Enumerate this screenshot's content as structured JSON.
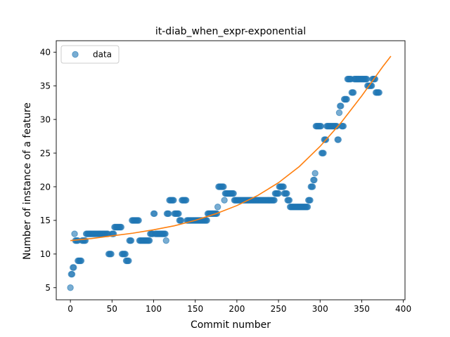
{
  "chart_data": {
    "type": "scatter",
    "title": "it-diab_when_expr-exponential",
    "xlabel": "Commit number",
    "ylabel": "Number of instance of a feature",
    "xlim": [
      -17,
      402
    ],
    "ylim": [
      3.2,
      41.7
    ],
    "xticks": [
      0,
      50,
      100,
      150,
      200,
      250,
      300,
      350,
      400
    ],
    "yticks": [
      5,
      10,
      15,
      20,
      25,
      30,
      35,
      40
    ],
    "grid": false,
    "legend": {
      "position": "top-left",
      "entries": [
        "data"
      ]
    },
    "series": [
      {
        "name": "data",
        "kind": "markers",
        "color": "#1f77b4",
        "segments": [
          [
            0,
            0,
            5
          ],
          [
            1,
            2,
            7
          ],
          [
            3,
            4,
            8
          ],
          [
            5,
            5,
            13
          ],
          [
            6,
            9,
            12
          ],
          [
            9,
            13,
            9
          ],
          [
            14,
            18,
            12
          ],
          [
            19,
            45,
            13
          ],
          [
            46,
            49,
            10
          ],
          [
            50,
            52,
            13
          ],
          [
            53,
            61,
            14
          ],
          [
            62,
            66,
            10
          ],
          [
            67,
            70,
            9
          ],
          [
            71,
            73,
            12
          ],
          [
            74,
            82,
            15
          ],
          [
            83,
            95,
            12
          ],
          [
            96,
            99,
            13
          ],
          [
            100,
            101,
            16
          ],
          [
            102,
            114,
            13
          ],
          [
            115,
            115,
            12
          ],
          [
            116,
            118,
            16
          ],
          [
            119,
            124,
            18
          ],
          [
            125,
            130,
            16
          ],
          [
            131,
            133,
            15
          ],
          [
            134,
            139,
            18
          ],
          [
            140,
            164,
            15
          ],
          [
            165,
            176,
            16
          ],
          [
            177,
            177,
            17
          ],
          [
            178,
            184,
            20
          ],
          [
            185,
            185,
            18
          ],
          [
            186,
            196,
            19
          ],
          [
            197,
            245,
            18
          ],
          [
            246,
            250,
            19
          ],
          [
            251,
            256,
            20
          ],
          [
            257,
            260,
            19
          ],
          [
            261,
            263,
            18
          ],
          [
            264,
            267,
            17
          ],
          [
            268,
            285,
            17
          ],
          [
            286,
            288,
            18
          ],
          [
            289,
            291,
            20
          ],
          [
            292,
            293,
            21
          ],
          [
            294,
            294,
            22
          ],
          [
            295,
            301,
            29
          ],
          [
            302,
            304,
            25
          ],
          [
            305,
            307,
            27
          ],
          [
            308,
            320,
            29
          ],
          [
            321,
            322,
            27
          ],
          [
            323,
            323,
            31
          ],
          [
            324,
            325,
            32
          ],
          [
            326,
            328,
            29
          ],
          [
            329,
            332,
            33
          ],
          [
            333,
            337,
            36
          ],
          [
            338,
            340,
            34
          ],
          [
            341,
            356,
            36
          ],
          [
            357,
            362,
            35
          ],
          [
            363,
            366,
            36
          ],
          [
            367,
            371,
            34
          ]
        ]
      },
      {
        "name": "",
        "kind": "line",
        "color": "#ff7f0e",
        "x": [
          0,
          25,
          50,
          75,
          100,
          125,
          150,
          175,
          200,
          225,
          250,
          275,
          300,
          325,
          350,
          375,
          385
        ],
        "y": [
          12.0,
          12.3,
          12.7,
          13.1,
          13.6,
          14.2,
          15.0,
          16.0,
          17.2,
          18.7,
          20.6,
          23.0,
          26.0,
          29.5,
          33.5,
          37.8,
          39.4
        ]
      }
    ]
  }
}
